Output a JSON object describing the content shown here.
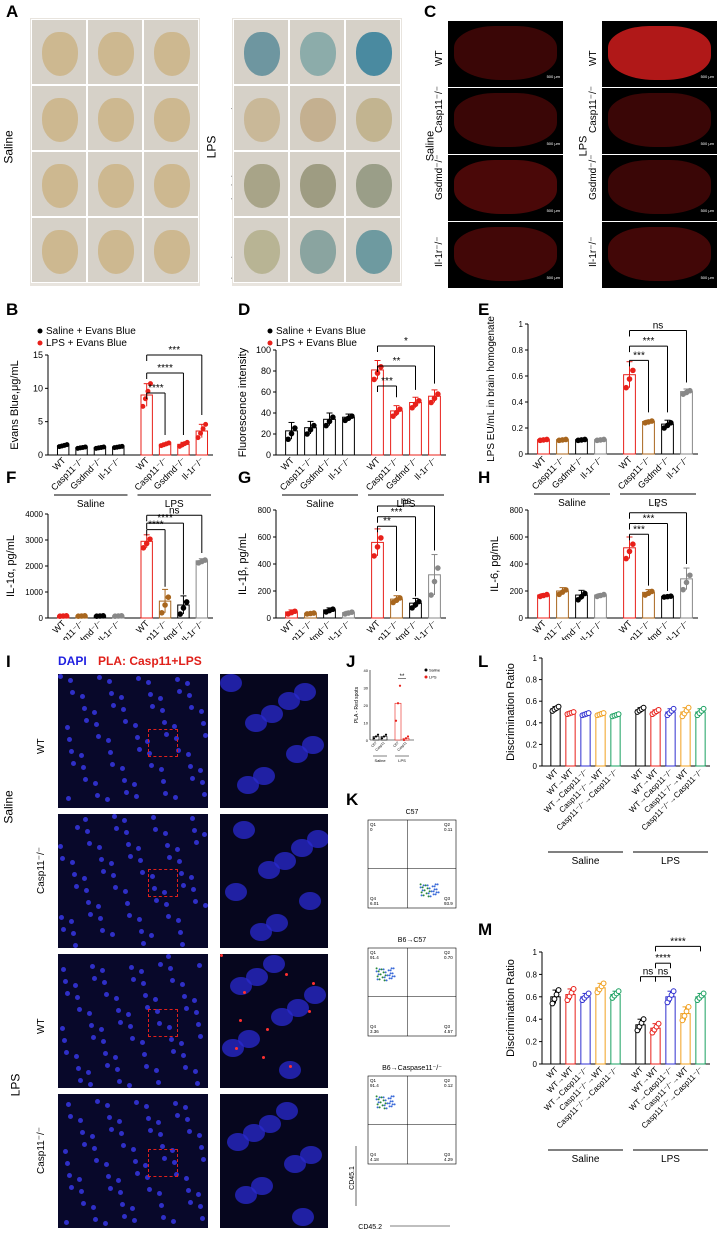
{
  "panels": {
    "A": "A",
    "B": "B",
    "C": "C",
    "D": "D",
    "E": "E",
    "F": "F",
    "G": "G",
    "H": "H",
    "I": "I",
    "J": "J",
    "K": "K",
    "L": "L",
    "M": "M"
  },
  "genotypes": [
    "WT",
    "Casp11⁻/⁻",
    "Gsdmd⁻/⁻",
    "Il-1r⁻/⁻"
  ],
  "treatments": {
    "saline": "Saline",
    "lps": "LPS"
  },
  "legends": {
    "saline_evans": "Saline + Evans Blue",
    "lps_evans": "LPS + Evans Blue",
    "saline": "Saline",
    "lps": "LPS"
  },
  "scale": "500 μm",
  "panelI": {
    "dapi": "DAPI",
    "pla": "PLA: Casp11+LPS",
    "rows": [
      "WT",
      "Casp11⁻/⁻",
      "WT",
      "Casp11⁻/⁻"
    ]
  },
  "panelK": {
    "plots": [
      {
        "title": "C57",
        "q1": "Q1",
        "q1v": "0",
        "q2": "Q2",
        "q2v": "0.11",
        "q3": "Q3",
        "q3v": "93.9",
        "q4": "Q4",
        "q4v": "6.01"
      },
      {
        "title": "B6→C57",
        "q1": "Q1",
        "q1v": "91.4",
        "q2": "Q2",
        "q2v": "0.70",
        "q3": "Q3",
        "q3v": "4.57",
        "q4": "Q4",
        "q4v": "3.36"
      },
      {
        "title": "B6→Caspase11⁻/⁻",
        "q1": "Q1",
        "q1v": "91.4",
        "q2": "Q2",
        "q2v": "0.12",
        "q3": "Q3",
        "q3v": "4.29",
        "q4": "Q4",
        "q4v": "4.18"
      }
    ],
    "xaxis": "CD45.2",
    "yaxis": "CD45.1"
  },
  "colors": {
    "saline": "#000000",
    "lps": "#e8201a",
    "brown": "#a8661e",
    "grey": "#888888",
    "lGreen": "#1aa060",
    "lOrange": "#f0a020",
    "lPurple": "#3030d0",
    "lBlue": "#3a6ed8",
    "lRed": "#e8201a"
  },
  "chart_data": [
    {
      "id": "B",
      "type": "bar",
      "ylabel": "Evans Blue,μg/mL",
      "ylim": [
        0,
        15
      ],
      "yticks": [
        0,
        5,
        10,
        15
      ],
      "categories": [
        "WT",
        "Casp11⁻/⁻",
        "Gsdmd⁻/⁻",
        "Il-1r⁻/⁻",
        "WT",
        "Casp11⁻/⁻",
        "Gsdmd⁻/⁻",
        "Il-1r⁻/⁻"
      ],
      "values": [
        1.4,
        1.1,
        1.1,
        1.2,
        9.0,
        1.6,
        1.6,
        3.6
      ],
      "errors": [
        0.15,
        0.1,
        0.1,
        0.1,
        1.7,
        0.2,
        0.3,
        1.0
      ],
      "groups": [
        "Saline",
        "LPS"
      ],
      "legend": [
        "Saline + Evans Blue",
        "LPS + Evans Blue"
      ],
      "significance": [
        "****",
        "****",
        "***"
      ]
    },
    {
      "id": "D",
      "type": "bar",
      "ylabel": "Fluorescence intensity",
      "ylim": [
        0,
        100
      ],
      "yticks": [
        0,
        20,
        40,
        60,
        80,
        100
      ],
      "categories": [
        "WT",
        "Casp11⁻/⁻",
        "Gsdmd⁻/⁻",
        "Il-1r⁻/⁻",
        "WT",
        "Casp11⁻/⁻",
        "Gsdmd⁻/⁻",
        "Il-1r⁻/⁻"
      ],
      "values": [
        23,
        26,
        34,
        36,
        81,
        42,
        50,
        56
      ],
      "errors": [
        8,
        6,
        6,
        3,
        9,
        5,
        5,
        6
      ],
      "groups": [
        "Saline",
        "LPS"
      ],
      "legend": [
        "Saline + Evans Blue",
        "LPS + Evans Blue"
      ],
      "significance": [
        "***",
        "**",
        "*"
      ]
    },
    {
      "id": "E",
      "type": "bar",
      "ylabel": "LPS EU/mL in brain homogenate",
      "ylim": [
        0,
        1.0
      ],
      "yticks": [
        0.0,
        0.2,
        0.4,
        0.6,
        0.8,
        1.0
      ],
      "categories": [
        "WT",
        "Casp11⁻/⁻",
        "Gsdmd⁻/⁻",
        "Il-1r⁻/⁻",
        "WT",
        "Casp11⁻/⁻",
        "Gsdmd⁻/⁻",
        "Il-1r⁻/⁻"
      ],
      "values": [
        0.11,
        0.11,
        0.11,
        0.11,
        0.61,
        0.25,
        0.23,
        0.48
      ],
      "errors": [
        0.005,
        0.005,
        0.005,
        0.005,
        0.1,
        0.01,
        0.03,
        0.02
      ],
      "groups": [
        "Saline",
        "LPS"
      ],
      "significance": [
        "***",
        "***",
        "ns"
      ]
    },
    {
      "id": "F",
      "type": "bar",
      "ylabel": "IL-1α, pg/mL",
      "ylim": [
        0,
        4000
      ],
      "yticks": [
        0,
        1000,
        2000,
        3000,
        4000
      ],
      "categories": [
        "WT",
        "Casp11⁻/⁻",
        "Gsdmd⁻/⁻",
        "Il-1r⁻/⁻",
        "WT",
        "Casp11⁻/⁻",
        "Gsdmd⁻/⁻",
        "Il-1r⁻/⁻"
      ],
      "values": [
        80,
        80,
        80,
        80,
        2950,
        650,
        500,
        2200
      ],
      "errors": [
        10,
        10,
        10,
        10,
        250,
        450,
        350,
        80
      ],
      "groups": [
        "Saline",
        "LPS"
      ],
      "significance": [
        "****",
        "****",
        "ns"
      ]
    },
    {
      "id": "G",
      "type": "bar",
      "ylabel": "IL-1β, pg/mL",
      "ylim": [
        0,
        800
      ],
      "yticks": [
        0,
        200,
        400,
        600,
        800
      ],
      "categories": [
        "WT",
        "Casp11⁻/⁻",
        "Gsdmd⁻/⁻",
        "Il-1r⁻/⁻",
        "WT",
        "Casp11⁻/⁻",
        "Gsdmd⁻/⁻",
        "Il-1r⁻/⁻"
      ],
      "values": [
        45,
        35,
        60,
        40,
        560,
        140,
        110,
        320
      ],
      "errors": [
        15,
        5,
        15,
        10,
        100,
        25,
        35,
        150
      ],
      "groups": [
        "Saline",
        "LPS"
      ],
      "significance": [
        "**",
        "***",
        "ns"
      ]
    },
    {
      "id": "H",
      "type": "bar",
      "ylabel": "IL-6, pg/mL",
      "ylim": [
        0,
        800
      ],
      "yticks": [
        0,
        200,
        400,
        600,
        800
      ],
      "categories": [
        "WT",
        "Casp11⁻/⁻",
        "Gsdmd⁻/⁻",
        "Il-1r⁻/⁻",
        "WT",
        "Casp11⁻/⁻",
        "Gsdmd⁻/⁻",
        "Il-1r⁻/⁻"
      ],
      "values": [
        170,
        200,
        170,
        170,
        520,
        190,
        160,
        290
      ],
      "errors": [
        10,
        25,
        35,
        10,
        80,
        20,
        5,
        80
      ],
      "groups": [
        "Saline",
        "LPS"
      ],
      "significance": [
        "***",
        "***",
        "*"
      ]
    },
    {
      "id": "J",
      "type": "bar",
      "ylabel": "PLA - Red spots",
      "ylim": [
        0,
        40
      ],
      "yticks": [
        0,
        10,
        20,
        30,
        40
      ],
      "categories": [
        "C57",
        "Casp11",
        "C57",
        "Casp11"
      ],
      "values": [
        2,
        2,
        21,
        1
      ],
      "errors": [
        1,
        1,
        10,
        1
      ],
      "groups": [
        "Saline",
        "LPS"
      ],
      "legend": [
        "Saline",
        "LPS"
      ],
      "significance": [
        "**"
      ]
    },
    {
      "id": "L",
      "type": "bar",
      "ylabel": "Discrimination Ratio",
      "ylim": [
        0,
        1.0
      ],
      "yticks": [
        0.0,
        0.2,
        0.4,
        0.6,
        0.8,
        1.0
      ],
      "categories": [
        "WT",
        "WT→WT",
        "WT→Casp11⁻/⁻",
        "Casp11⁻/⁻→WT",
        "Casp11⁻/⁻→Casp11⁻/⁻",
        "WT",
        "WT→WT",
        "WT→Casp11⁻/⁻",
        "Casp11⁻/⁻→WT",
        "Casp11⁻/⁻→Casp11⁻/⁻"
      ],
      "values": [
        0.53,
        0.49,
        0.48,
        0.48,
        0.47,
        0.52,
        0.5,
        0.5,
        0.5,
        0.5
      ],
      "errors": [
        0.02,
        0.01,
        0.01,
        0.01,
        0.01,
        0.02,
        0.02,
        0.03,
        0.04,
        0.03
      ],
      "groups": [
        "Saline",
        "LPS"
      ]
    },
    {
      "id": "M",
      "type": "bar",
      "ylabel": "Discrimination Ratio",
      "ylim": [
        0,
        1.0
      ],
      "yticks": [
        0.0,
        0.2,
        0.4,
        0.6,
        0.8,
        1.0
      ],
      "categories": [
        "WT",
        "WT→WT",
        "WT→Casp11⁻/⁻",
        "Casp11⁻/⁻→WT",
        "Casp11⁻/⁻→Casp11⁻/⁻",
        "WT",
        "WT→WT",
        "WT→Casp11⁻/⁻",
        "Casp11⁻/⁻→WT",
        "Casp11⁻/⁻→Casp11⁻/⁻"
      ],
      "values": [
        0.6,
        0.62,
        0.6,
        0.68,
        0.62,
        0.35,
        0.32,
        0.6,
        0.45,
        0.6
      ],
      "errors": [
        0.06,
        0.05,
        0.03,
        0.04,
        0.03,
        0.05,
        0.04,
        0.05,
        0.06,
        0.03
      ],
      "groups": [
        "Saline",
        "LPS"
      ],
      "significance": [
        "ns",
        "ns",
        "****",
        "****"
      ]
    }
  ]
}
